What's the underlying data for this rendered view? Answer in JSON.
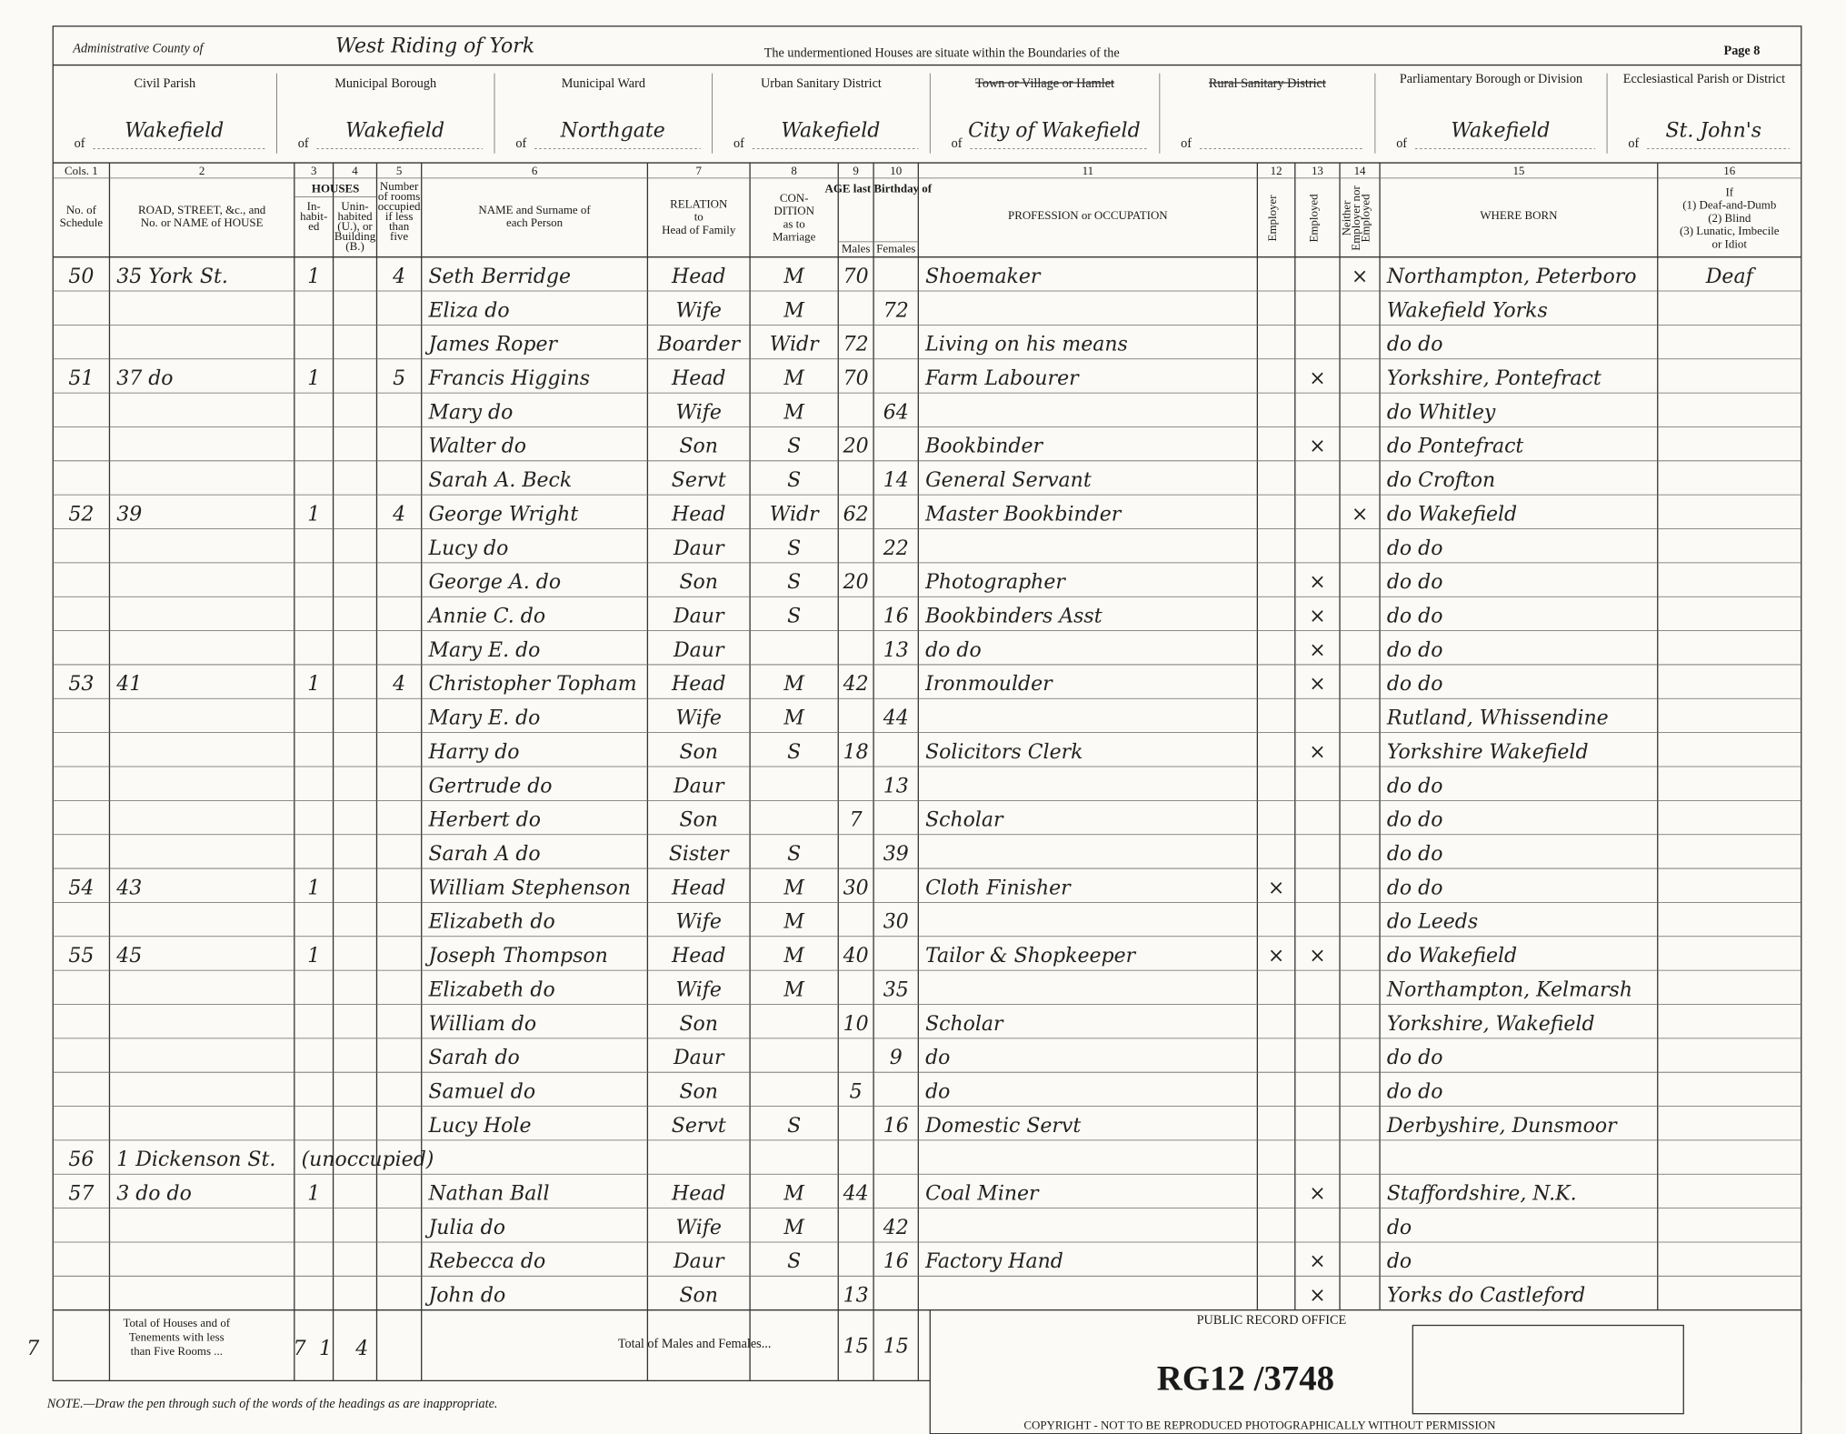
{
  "header": {
    "county_label": "Administrative County of",
    "county_value": "West Riding of York",
    "boundaries_text": "The undermentioned Houses are situate within the Boundaries of the",
    "page": "Page 8"
  },
  "districts": [
    {
      "label": "Civil Parish",
      "prefix": "of",
      "value": "Wakefield"
    },
    {
      "label": "Municipal Borough",
      "prefix": "of",
      "value": "Wakefield"
    },
    {
      "label": "Municipal Ward",
      "prefix": "of",
      "value": "Northgate"
    },
    {
      "label": "Urban Sanitary District",
      "prefix": "of",
      "value": "Wakefield"
    },
    {
      "label": "Town or Village or Hamlet",
      "prefix": "of",
      "value": "City of Wakefield",
      "struck": true
    },
    {
      "label": "Rural Sanitary District",
      "prefix": "of",
      "value": null,
      "struck": true
    },
    {
      "label": "Parliamentary Borough or Division",
      "prefix": "of",
      "value": "Wakefield"
    },
    {
      "label": "Ecclesiastical Parish or District",
      "prefix": "of",
      "value": "St. John's"
    }
  ],
  "columns": {
    "numbers": [
      "Cols. 1",
      "2",
      "3",
      "4",
      "5",
      "6",
      "7",
      "8",
      "9",
      "10",
      "11",
      "12",
      "13",
      "14",
      "15",
      "16"
    ],
    "groups": [
      "HOUSES",
      "AGE last Birthday of"
    ],
    "headings": [
      [
        "No. of",
        "Schedule"
      ],
      [
        "ROAD, STREET, &c., and",
        "No. or NAME of HOUSE"
      ],
      [
        "In-",
        "habit-",
        "ed"
      ],
      [
        "Unin-",
        "habited",
        "(U.), or",
        "Building",
        "(B.)"
      ],
      [
        "Number",
        "of rooms",
        "occupied",
        "if less",
        "than",
        "five"
      ],
      [
        "NAME and Surname of",
        "each Person"
      ],
      [
        "RELATION",
        "to",
        "Head of Family"
      ],
      [
        "CON-",
        "DITION",
        "as to",
        "Marriage"
      ],
      [
        "Males"
      ],
      [
        "Females"
      ],
      [
        "PROFESSION or OCCUPATION"
      ],
      [
        "Employer"
      ],
      [
        "Employed"
      ],
      [
        "Neither",
        "Employer nor",
        "Employed"
      ],
      [
        "WHERE BORN"
      ],
      [
        "If",
        "(1) Deaf-and-Dumb",
        "(2) Blind",
        "(3) Lunatic, Imbecile",
        "or Idiot"
      ]
    ]
  },
  "table": {
    "rows": [
      [
        50,
        "35 York St.",
        1,
        null,
        4,
        "Seth Berridge",
        "Head",
        "M",
        70,
        null,
        "Shoemaker",
        null,
        null,
        "×",
        "Northampton, Peterboro",
        "Deaf"
      ],
      [
        null,
        null,
        null,
        null,
        null,
        "Eliza do",
        "Wife",
        "M",
        null,
        72,
        null,
        null,
        null,
        null,
        "Wakefield Yorks",
        null
      ],
      [
        null,
        null,
        null,
        null,
        null,
        "James Roper",
        "Boarder",
        "Widr",
        72,
        null,
        "Living on his means",
        null,
        null,
        null,
        "do  do",
        null
      ],
      [
        51,
        "37  do",
        1,
        null,
        5,
        "Francis Higgins",
        "Head",
        "M",
        70,
        null,
        "Farm Labourer",
        null,
        "×",
        null,
        "Yorkshire, Pontefract",
        null
      ],
      [
        null,
        null,
        null,
        null,
        null,
        "Mary do",
        "Wife",
        "M",
        null,
        64,
        null,
        null,
        null,
        null,
        "do  Whitley",
        null
      ],
      [
        null,
        null,
        null,
        null,
        null,
        "Walter do",
        "Son",
        "S",
        20,
        null,
        "Bookbinder",
        null,
        "×",
        null,
        "do  Pontefract",
        null
      ],
      [
        null,
        null,
        null,
        null,
        null,
        "Sarah A. Beck",
        "Servt",
        "S",
        null,
        14,
        "General Servant",
        null,
        null,
        null,
        "do  Crofton",
        null
      ],
      [
        52,
        "39",
        1,
        null,
        4,
        "George Wright",
        "Head",
        "Widr",
        62,
        null,
        "Master Bookbinder",
        null,
        null,
        "×",
        "do  Wakefield",
        null
      ],
      [
        null,
        null,
        null,
        null,
        null,
        "Lucy do",
        "Daur",
        "S",
        null,
        22,
        null,
        null,
        null,
        null,
        "do  do",
        null
      ],
      [
        null,
        null,
        null,
        null,
        null,
        "George A. do",
        "Son",
        "S",
        20,
        null,
        "Photographer",
        null,
        "×",
        null,
        "do  do",
        null
      ],
      [
        null,
        null,
        null,
        null,
        null,
        "Annie C. do",
        "Daur",
        "S",
        null,
        16,
        "Bookbinders Asst",
        null,
        "×",
        null,
        "do  do",
        null
      ],
      [
        null,
        null,
        null,
        null,
        null,
        "Mary E. do",
        "Daur",
        null,
        null,
        13,
        "do  do",
        null,
        "×",
        null,
        "do  do",
        null
      ],
      [
        53,
        "41",
        1,
        null,
        4,
        "Christopher Topham",
        "Head",
        "M",
        42,
        null,
        "Ironmoulder",
        null,
        "×",
        null,
        "do  do",
        null
      ],
      [
        null,
        null,
        null,
        null,
        null,
        "Mary E. do",
        "Wife",
        "M",
        null,
        44,
        null,
        null,
        null,
        null,
        "Rutland, Whissendine",
        null
      ],
      [
        null,
        null,
        null,
        null,
        null,
        "Harry do",
        "Son",
        "S",
        18,
        null,
        "Solicitors Clerk",
        null,
        "×",
        null,
        "Yorkshire Wakefield",
        null
      ],
      [
        null,
        null,
        null,
        null,
        null,
        "Gertrude do",
        "Daur",
        null,
        null,
        13,
        null,
        null,
        null,
        null,
        "do  do",
        null
      ],
      [
        null,
        null,
        null,
        null,
        null,
        "Herbert do",
        "Son",
        null,
        7,
        null,
        "Scholar",
        null,
        null,
        null,
        "do  do",
        null
      ],
      [
        null,
        null,
        null,
        null,
        null,
        "Sarah A do",
        "Sister",
        "S",
        null,
        39,
        null,
        null,
        null,
        null,
        "do  do",
        null
      ],
      [
        54,
        "43",
        1,
        null,
        null,
        "William Stephenson",
        "Head",
        "M",
        30,
        null,
        "Cloth Finisher",
        "×",
        null,
        null,
        "do  do",
        null
      ],
      [
        null,
        null,
        null,
        null,
        null,
        "Elizabeth do",
        "Wife",
        "M",
        null,
        30,
        null,
        null,
        null,
        null,
        "do  Leeds",
        null
      ],
      [
        55,
        "45",
        1,
        null,
        null,
        "Joseph Thompson",
        "Head",
        "M",
        40,
        null,
        "Tailor & Shopkeeper",
        "×",
        "×",
        null,
        "do  Wakefield",
        null
      ],
      [
        null,
        null,
        null,
        null,
        null,
        "Elizabeth do",
        "Wife",
        "M",
        null,
        35,
        null,
        null,
        null,
        null,
        "Northampton, Kelmarsh",
        null
      ],
      [
        null,
        null,
        null,
        null,
        null,
        "William do",
        "Son",
        null,
        10,
        null,
        "Scholar",
        null,
        null,
        null,
        "Yorkshire, Wakefield",
        null
      ],
      [
        null,
        null,
        null,
        null,
        null,
        "Sarah do",
        "Daur",
        null,
        null,
        9,
        "do",
        null,
        null,
        null,
        "do  do",
        null
      ],
      [
        null,
        null,
        null,
        null,
        null,
        "Samuel do",
        "Son",
        null,
        5,
        null,
        "do",
        null,
        null,
        null,
        "do  do",
        null
      ],
      [
        null,
        null,
        null,
        null,
        null,
        "Lucy Hole",
        "Servt",
        "S",
        null,
        16,
        "Domestic Servt",
        null,
        null,
        null,
        "Derbyshire, Dunsmoor",
        null
      ],
      [
        56,
        "1 Dickenson St.",
        "(unoccupied)",
        null,
        null,
        null,
        null,
        null,
        null,
        null,
        null,
        null,
        null,
        null,
        null,
        null
      ],
      [
        57,
        "3  do  do",
        1,
        null,
        null,
        "Nathan Ball",
        "Head",
        "M",
        44,
        null,
        "Coal Miner",
        null,
        "×",
        null,
        "Staffordshire, N.K.",
        null
      ],
      [
        null,
        null,
        null,
        null,
        null,
        "Julia do",
        "Wife",
        "M",
        null,
        42,
        null,
        null,
        null,
        null,
        "do",
        null
      ],
      [
        null,
        null,
        null,
        null,
        null,
        "Rebecca do",
        "Daur",
        "S",
        null,
        16,
        "Factory Hand",
        null,
        "×",
        null,
        "do",
        null
      ],
      [
        null,
        null,
        null,
        null,
        null,
        "John do",
        "Son",
        null,
        13,
        null,
        null,
        null,
        "×",
        null,
        "Yorks  do  Castleford",
        null
      ]
    ]
  },
  "totals": {
    "houses_label": [
      "Total of Houses and of",
      "Tenements with less",
      "than Five Rooms ..."
    ],
    "houses_values": [
      7,
      7,
      1,
      4
    ],
    "persons_label": "Total of Males and Females...",
    "persons_values": [
      15,
      15
    ]
  },
  "note": "NOTE.—Draw the pen through such of the words of the headings as are inappropriate.",
  "stamp": {
    "reference": "RG12 /3748",
    "office": "PUBLIC RECORD OFFICE",
    "copyright": "COPYRIGHT - NOT TO BE REPRODUCED PHOTOGRAPHICALLY WITHOUT PERMISSION"
  }
}
